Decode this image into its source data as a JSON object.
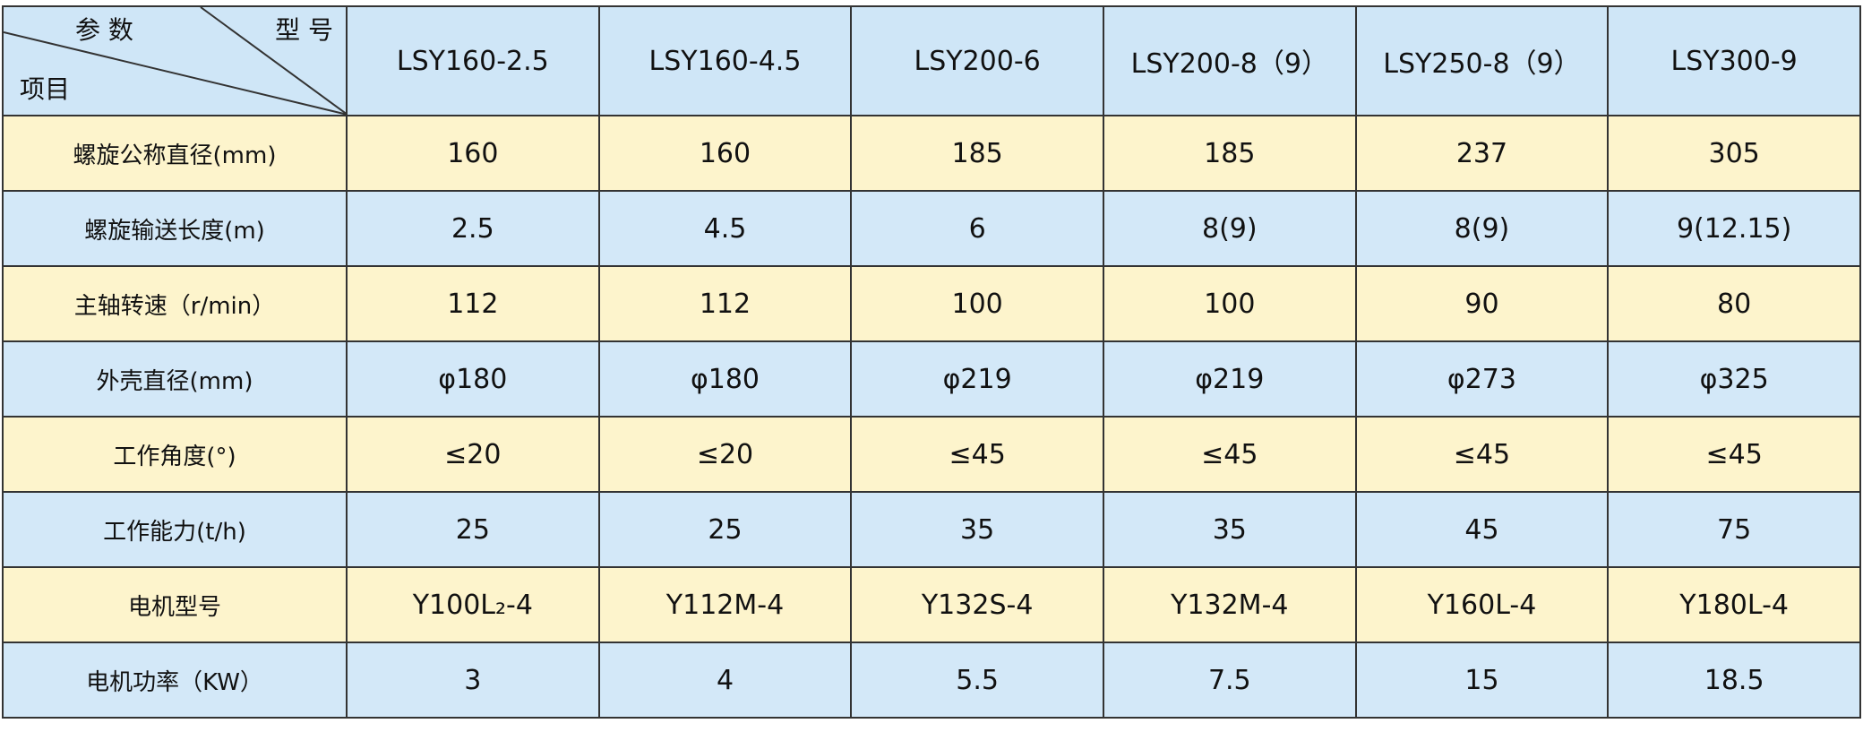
{
  "header": {
    "param": "参 数",
    "model": "型 号",
    "item": "项目",
    "columns": [
      "LSY160-2.5",
      "LSY160-4.5",
      "LSY200-6",
      "LSY200-8（9）",
      "LSY250-8（9）",
      "LSY300-9"
    ]
  },
  "table": {
    "rows": [
      {
        "label": "螺旋公称直径(mm)",
        "values": [
          "160",
          "160",
          "185",
          "185",
          "237",
          "305"
        ]
      },
      {
        "label": "螺旋输送长度(m)",
        "values": [
          "2.5",
          "4.5",
          "6",
          "8(9)",
          "8(9)",
          "9(12.15)"
        ]
      },
      {
        "label": "主轴转速（r/min）",
        "values": [
          "112",
          "112",
          "100",
          "100",
          "90",
          "80"
        ]
      },
      {
        "label": "外壳直径(mm)",
        "values": [
          "φ180",
          "φ180",
          "φ219",
          "φ219",
          "φ273",
          "φ325"
        ]
      },
      {
        "label": "工作角度(°)",
        "values": [
          "≤20",
          "≤20",
          "≤45",
          "≤45",
          "≤45",
          "≤45"
        ]
      },
      {
        "label": "工作能力(t/h)",
        "values": [
          "25",
          "25",
          "35",
          "35",
          "45",
          "75"
        ]
      },
      {
        "label": "电机型号",
        "values": [
          "Y100L₂-4",
          "Y112M-4",
          "Y132S-4",
          "Y132M-4",
          "Y160L-4",
          "Y180L-4"
        ]
      },
      {
        "label": "电机功率（KW）",
        "values": [
          "3",
          "4",
          "5.5",
          "7.5",
          "15",
          "18.5"
        ]
      }
    ]
  }
}
